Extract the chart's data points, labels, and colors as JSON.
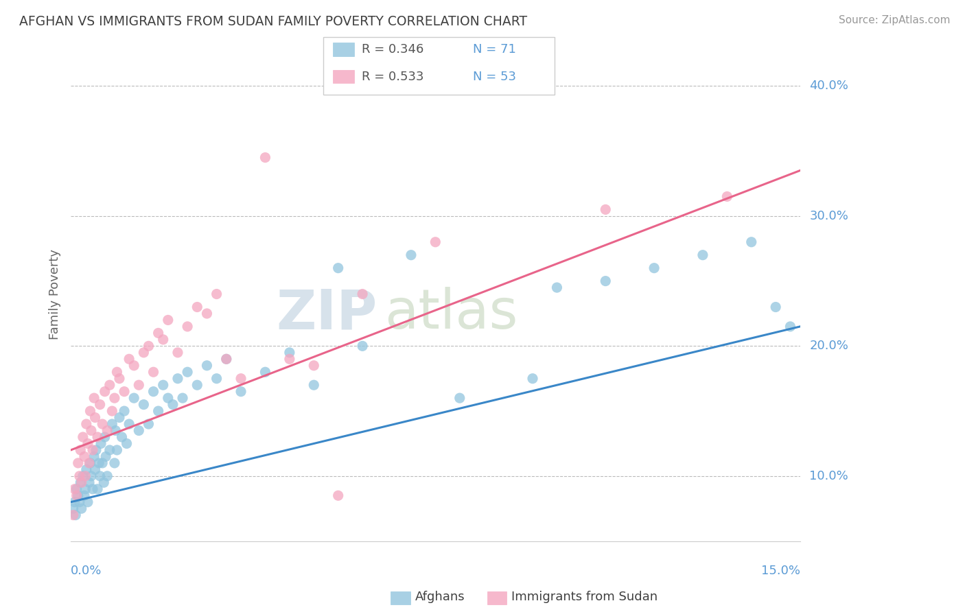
{
  "title": "AFGHAN VS IMMIGRANTS FROM SUDAN FAMILY POVERTY CORRELATION CHART",
  "source": "Source: ZipAtlas.com",
  "ylabel": "Family Poverty",
  "yticks": [
    10.0,
    20.0,
    30.0,
    40.0
  ],
  "ytick_labels": [
    "10.0%",
    "20.0%",
    "30.0%",
    "40.0%"
  ],
  "x_min": 0.0,
  "x_max": 15.0,
  "y_min": 5.0,
  "y_max": 43.0,
  "blue_color": "#92c5de",
  "pink_color": "#f4a6c0",
  "blue_line_color": "#3a87c8",
  "pink_line_color": "#e8648a",
  "watermark_zip": "ZIP",
  "watermark_atlas": "atlas",
  "legend_r1": "R = 0.346",
  "legend_n1": "N = 71",
  "legend_r2": "R = 0.533",
  "legend_n2": "N = 53",
  "afghans_x": [
    0.05,
    0.08,
    0.1,
    0.12,
    0.15,
    0.18,
    0.2,
    0.22,
    0.25,
    0.28,
    0.3,
    0.32,
    0.35,
    0.38,
    0.4,
    0.42,
    0.45,
    0.48,
    0.5,
    0.52,
    0.55,
    0.58,
    0.6,
    0.62,
    0.65,
    0.68,
    0.7,
    0.72,
    0.75,
    0.8,
    0.85,
    0.9,
    0.92,
    0.95,
    1.0,
    1.05,
    1.1,
    1.15,
    1.2,
    1.3,
    1.4,
    1.5,
    1.6,
    1.7,
    1.8,
    1.9,
    2.0,
    2.1,
    2.2,
    2.3,
    2.4,
    2.6,
    2.8,
    3.0,
    3.2,
    3.5,
    4.0,
    4.5,
    5.0,
    5.5,
    6.0,
    7.0,
    8.0,
    9.5,
    10.0,
    11.0,
    12.0,
    13.0,
    14.0,
    14.5,
    14.8
  ],
  "afghans_y": [
    7.5,
    8.0,
    7.0,
    9.0,
    8.5,
    8.0,
    9.5,
    7.5,
    10.0,
    8.5,
    9.0,
    10.5,
    8.0,
    9.5,
    11.0,
    10.0,
    9.0,
    11.5,
    10.5,
    12.0,
    9.0,
    11.0,
    10.0,
    12.5,
    11.0,
    9.5,
    13.0,
    11.5,
    10.0,
    12.0,
    14.0,
    11.0,
    13.5,
    12.0,
    14.5,
    13.0,
    15.0,
    12.5,
    14.0,
    16.0,
    13.5,
    15.5,
    14.0,
    16.5,
    15.0,
    17.0,
    16.0,
    15.5,
    17.5,
    16.0,
    18.0,
    17.0,
    18.5,
    17.5,
    19.0,
    16.5,
    18.0,
    19.5,
    17.0,
    26.0,
    20.0,
    27.0,
    16.0,
    17.5,
    24.5,
    25.0,
    26.0,
    27.0,
    28.0,
    23.0,
    21.5
  ],
  "sudan_x": [
    0.05,
    0.08,
    0.12,
    0.15,
    0.18,
    0.2,
    0.22,
    0.25,
    0.28,
    0.3,
    0.32,
    0.35,
    0.38,
    0.4,
    0.42,
    0.45,
    0.48,
    0.5,
    0.55,
    0.6,
    0.65,
    0.7,
    0.75,
    0.8,
    0.85,
    0.9,
    0.95,
    1.0,
    1.1,
    1.2,
    1.3,
    1.4,
    1.5,
    1.6,
    1.7,
    1.8,
    1.9,
    2.0,
    2.2,
    2.4,
    2.6,
    2.8,
    3.0,
    3.2,
    3.5,
    4.0,
    4.5,
    5.0,
    5.5,
    6.0,
    7.5,
    11.0,
    13.5
  ],
  "sudan_y": [
    7.0,
    9.0,
    8.5,
    11.0,
    10.0,
    12.0,
    9.5,
    13.0,
    11.5,
    10.0,
    14.0,
    12.5,
    11.0,
    15.0,
    13.5,
    12.0,
    16.0,
    14.5,
    13.0,
    15.5,
    14.0,
    16.5,
    13.5,
    17.0,
    15.0,
    16.0,
    18.0,
    17.5,
    16.5,
    19.0,
    18.5,
    17.0,
    19.5,
    20.0,
    18.0,
    21.0,
    20.5,
    22.0,
    19.5,
    21.5,
    23.0,
    22.5,
    24.0,
    19.0,
    17.5,
    34.5,
    19.0,
    18.5,
    8.5,
    24.0,
    28.0,
    30.5,
    31.5
  ]
}
